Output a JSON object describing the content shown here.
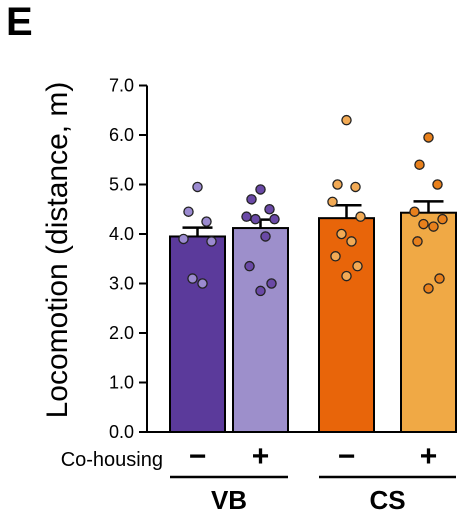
{
  "panel_label": "E",
  "chart_data": {
    "type": "bar",
    "ylabel": "Locomotion (distance, m)",
    "ylim": [
      0,
      7.0
    ],
    "yticks": [
      "0.0",
      "1.0",
      "2.0",
      "3.0",
      "4.0",
      "5.0",
      "6.0",
      "7.0"
    ],
    "factor_label": "Co-housing",
    "groups": [
      {
        "name": "VB",
        "bars": [
          "−",
          "+"
        ]
      },
      {
        "name": "CS",
        "bars": [
          "−",
          "+"
        ]
      }
    ],
    "bars": [
      {
        "group": "VB",
        "cohousing": "−",
        "value": 3.95,
        "sem": 0.18,
        "fill": "#5b3a9b",
        "point_fill": "#9b8ad0",
        "points": [
          4.95,
          4.45,
          4.25,
          3.9,
          3.85,
          3.1,
          3.0
        ]
      },
      {
        "group": "VB",
        "cohousing": "+",
        "value": 4.12,
        "sem": 0.17,
        "fill": "#9d8fcb",
        "point_fill": "#6a49a6",
        "points": [
          4.9,
          4.7,
          4.5,
          4.35,
          4.3,
          4.3,
          3.95,
          3.35,
          3.0,
          2.85
        ]
      },
      {
        "group": "CS",
        "cohousing": "−",
        "value": 4.32,
        "sem": 0.26,
        "fill": "#e8650a",
        "point_fill": "#f2aa55",
        "points": [
          6.3,
          5.0,
          4.95,
          4.65,
          4.35,
          4.0,
          3.85,
          3.55,
          3.35,
          3.15
        ]
      },
      {
        "group": "CS",
        "cohousing": "+",
        "value": 4.43,
        "sem": 0.23,
        "fill": "#f0a945",
        "point_fill": "#e8801c",
        "points": [
          5.95,
          5.4,
          5.0,
          4.45,
          4.3,
          4.2,
          4.15,
          3.85,
          3.1,
          2.9
        ]
      }
    ]
  }
}
